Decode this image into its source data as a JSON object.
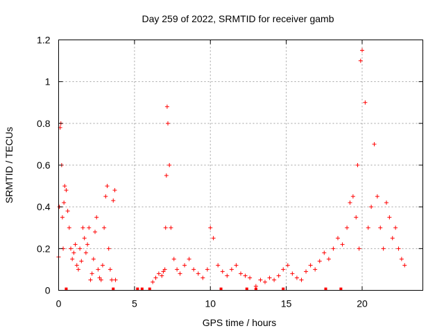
{
  "chart_data": {
    "type": "scatter",
    "title": "Day 259 of 2022, SRMTID for receiver gamb",
    "xlabel": "GPS time / hours",
    "ylabel": "SRMTID / TECUs",
    "xlim": [
      0,
      24
    ],
    "ylim": [
      0,
      1.2
    ],
    "x_ticks": [
      0,
      5,
      10,
      15,
      20
    ],
    "x_tick_labels": [
      "0",
      "5",
      "10",
      "15",
      "20"
    ],
    "y_ticks": [
      0,
      0.2,
      0.4,
      0.6,
      0.8,
      1.0,
      1.2
    ],
    "y_tick_labels": [
      "0",
      "0.2",
      "0.4",
      "0.6",
      "0.8",
      "1",
      "1.2"
    ],
    "grid": true,
    "marker": "+",
    "series": [
      {
        "name": "SRMTID",
        "color": "#ff0000",
        "x": [
          0.0,
          0.05,
          0.1,
          0.15,
          0.2,
          0.25,
          0.3,
          0.35,
          0.4,
          0.5,
          0.6,
          0.7,
          0.8,
          0.9,
          1.0,
          1.1,
          1.2,
          1.3,
          1.4,
          1.5,
          1.6,
          1.7,
          1.8,
          1.9,
          2.0,
          2.1,
          2.2,
          2.3,
          2.4,
          2.5,
          2.6,
          2.7,
          2.8,
          2.9,
          3.0,
          3.1,
          3.2,
          3.3,
          3.4,
          3.5,
          3.6,
          3.7,
          3.75,
          6.2,
          6.4,
          6.6,
          6.8,
          6.9,
          7.0,
          7.05,
          7.1,
          7.15,
          7.2,
          7.3,
          7.4,
          7.6,
          7.8,
          8.0,
          8.3,
          8.6,
          8.9,
          9.2,
          9.5,
          9.8,
          10.0,
          10.2,
          10.5,
          10.8,
          11.1,
          11.4,
          11.7,
          12.0,
          12.3,
          12.6,
          13.0,
          13.3,
          13.6,
          13.9,
          14.2,
          14.5,
          14.8,
          15.1,
          15.4,
          15.7,
          16.0,
          16.3,
          16.6,
          16.9,
          17.2,
          17.5,
          17.8,
          18.1,
          18.4,
          18.7,
          19.0,
          19.2,
          19.4,
          19.6,
          19.7,
          19.8,
          19.9,
          20.0,
          20.2,
          20.4,
          20.6,
          20.8,
          21.0,
          21.2,
          21.4,
          21.6,
          21.8,
          22.0,
          22.2,
          22.4,
          22.6,
          22.8
        ],
        "y": [
          0.16,
          0.4,
          0.78,
          0.8,
          0.6,
          0.35,
          0.2,
          0.42,
          0.5,
          0.48,
          0.38,
          0.3,
          0.2,
          0.15,
          0.18,
          0.22,
          0.12,
          0.1,
          0.2,
          0.14,
          0.3,
          0.25,
          0.18,
          0.22,
          0.3,
          0.05,
          0.08,
          0.15,
          0.28,
          0.35,
          0.1,
          0.06,
          0.05,
          0.12,
          0.3,
          0.45,
          0.5,
          0.2,
          0.1,
          0.05,
          0.43,
          0.48,
          0.05,
          0.04,
          0.06,
          0.08,
          0.07,
          0.09,
          0.1,
          0.3,
          0.55,
          0.88,
          0.8,
          0.6,
          0.3,
          0.15,
          0.1,
          0.08,
          0.12,
          0.15,
          0.1,
          0.08,
          0.06,
          0.1,
          0.3,
          0.25,
          0.12,
          0.09,
          0.07,
          0.1,
          0.12,
          0.08,
          0.07,
          0.06,
          0.02,
          0.05,
          0.04,
          0.06,
          0.05,
          0.07,
          0.1,
          0.12,
          0.08,
          0.06,
          0.05,
          0.09,
          0.12,
          0.1,
          0.14,
          0.18,
          0.15,
          0.2,
          0.25,
          0.22,
          0.3,
          0.42,
          0.45,
          0.35,
          0.6,
          0.2,
          1.1,
          1.15,
          0.9,
          0.3,
          0.4,
          0.7,
          0.45,
          0.3,
          0.2,
          0.42,
          0.35,
          0.25,
          0.3,
          0.2,
          0.15,
          0.12
        ],
        "zero_ticks_x": [
          0.5,
          3.6,
          5.2,
          5.5,
          6.0,
          10.7,
          12.4,
          13.0,
          14.8,
          17.6,
          18.6
        ]
      }
    ]
  }
}
